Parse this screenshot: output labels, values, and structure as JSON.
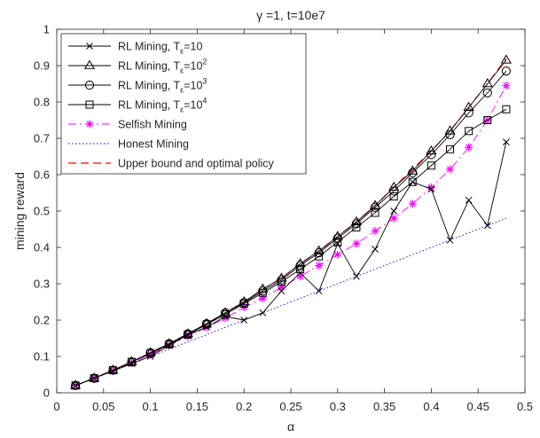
{
  "chart_data": {
    "type": "line",
    "title": "γ =1, t=10e7",
    "xlabel": "α",
    "ylabel": "mining reward",
    "xlim": [
      0,
      0.5
    ],
    "ylim": [
      0,
      1
    ],
    "xticks": [
      0,
      0.05,
      0.1,
      0.15,
      0.2,
      0.25,
      0.3,
      0.35,
      0.4,
      0.45,
      0.5
    ],
    "yticks": [
      0,
      0.1,
      0.2,
      0.3,
      0.4,
      0.5,
      0.6,
      0.7,
      0.8,
      0.9,
      1
    ],
    "xtick_labels": [
      "0",
      "0.05",
      "0.1",
      "0.15",
      "0.2",
      "0.25",
      "0.3",
      "0.35",
      "0.4",
      "0.45",
      "0.5"
    ],
    "ytick_labels": [
      "0",
      "0.1",
      "0.2",
      "0.3",
      "0.4",
      "0.5",
      "0.6",
      "0.7",
      "0.8",
      "0.9",
      "1"
    ],
    "grid": false,
    "legend_position": "top-left",
    "x": [
      0.02,
      0.04,
      0.06,
      0.08,
      0.1,
      0.12,
      0.14,
      0.16,
      0.18,
      0.2,
      0.22,
      0.24,
      0.26,
      0.28,
      0.3,
      0.32,
      0.34,
      0.36,
      0.38,
      0.4,
      0.42,
      0.44,
      0.46,
      0.48
    ],
    "series": [
      {
        "name": "RL Mining, T",
        "sub": "ε",
        "eq": "=10",
        "sup": "",
        "color": "#000000",
        "marker": "x",
        "dash": "solid",
        "values": [
          0.02,
          0.04,
          0.06,
          0.08,
          0.1,
          0.13,
          0.16,
          0.18,
          0.21,
          0.2,
          0.22,
          0.28,
          0.33,
          0.28,
          0.41,
          0.32,
          0.395,
          0.5,
          0.58,
          0.56,
          0.42,
          0.53,
          0.46,
          0.69
        ]
      },
      {
        "name": "RL Mining, T",
        "sub": "ε",
        "eq": "=10",
        "sup": "2",
        "color": "#000000",
        "marker": "triangle",
        "dash": "solid",
        "values": [
          0.02,
          0.04,
          0.062,
          0.085,
          0.11,
          0.135,
          0.162,
          0.19,
          0.22,
          0.25,
          0.285,
          0.315,
          0.355,
          0.39,
          0.43,
          0.47,
          0.515,
          0.565,
          0.61,
          0.665,
          0.72,
          0.785,
          0.85,
          0.915
        ]
      },
      {
        "name": "RL Mining, T",
        "sub": "ε",
        "eq": "=10",
        "sup": "3",
        "color": "#000000",
        "marker": "circle",
        "dash": "solid",
        "values": [
          0.02,
          0.04,
          0.062,
          0.085,
          0.11,
          0.135,
          0.162,
          0.19,
          0.22,
          0.248,
          0.28,
          0.31,
          0.35,
          0.385,
          0.425,
          0.465,
          0.51,
          0.555,
          0.605,
          0.655,
          0.71,
          0.77,
          0.825,
          0.885
        ]
      },
      {
        "name": "RL Mining, T",
        "sub": "ε",
        "eq": "=10",
        "sup": "4",
        "color": "#000000",
        "marker": "square",
        "dash": "solid",
        "values": [
          0.02,
          0.04,
          0.062,
          0.085,
          0.108,
          0.133,
          0.16,
          0.188,
          0.216,
          0.245,
          0.275,
          0.305,
          0.34,
          0.375,
          0.415,
          0.455,
          0.495,
          0.54,
          0.58,
          0.625,
          0.67,
          0.72,
          0.75,
          0.78
        ]
      },
      {
        "name": "Selfish Mining",
        "color": "#ff00ff",
        "marker": "asterisk",
        "dash": "dashdot",
        "values": [
          0.02,
          0.04,
          0.06,
          0.082,
          0.105,
          0.13,
          0.155,
          0.18,
          0.205,
          0.235,
          0.26,
          0.29,
          0.32,
          0.35,
          0.38,
          0.41,
          0.445,
          0.48,
          0.52,
          0.565,
          0.615,
          0.675,
          0.75,
          0.845
        ]
      },
      {
        "name": "Honest Mining",
        "color": "#0000ff",
        "marker": "none",
        "dash": "dotted",
        "values": [
          0.02,
          0.04,
          0.06,
          0.08,
          0.1,
          0.12,
          0.14,
          0.16,
          0.18,
          0.2,
          0.22,
          0.24,
          0.26,
          0.28,
          0.3,
          0.32,
          0.34,
          0.36,
          0.38,
          0.4,
          0.42,
          0.44,
          0.46,
          0.48
        ]
      },
      {
        "name": "Upper bound and optimal policy",
        "color": "#ff0000",
        "marker": "none",
        "dash": "dashed",
        "values": [
          0.02,
          0.04,
          0.062,
          0.085,
          0.11,
          0.135,
          0.162,
          0.19,
          0.22,
          0.25,
          0.285,
          0.315,
          0.355,
          0.39,
          0.43,
          0.47,
          0.515,
          0.565,
          0.615,
          0.665,
          0.72,
          0.785,
          0.85,
          0.92
        ]
      }
    ]
  }
}
